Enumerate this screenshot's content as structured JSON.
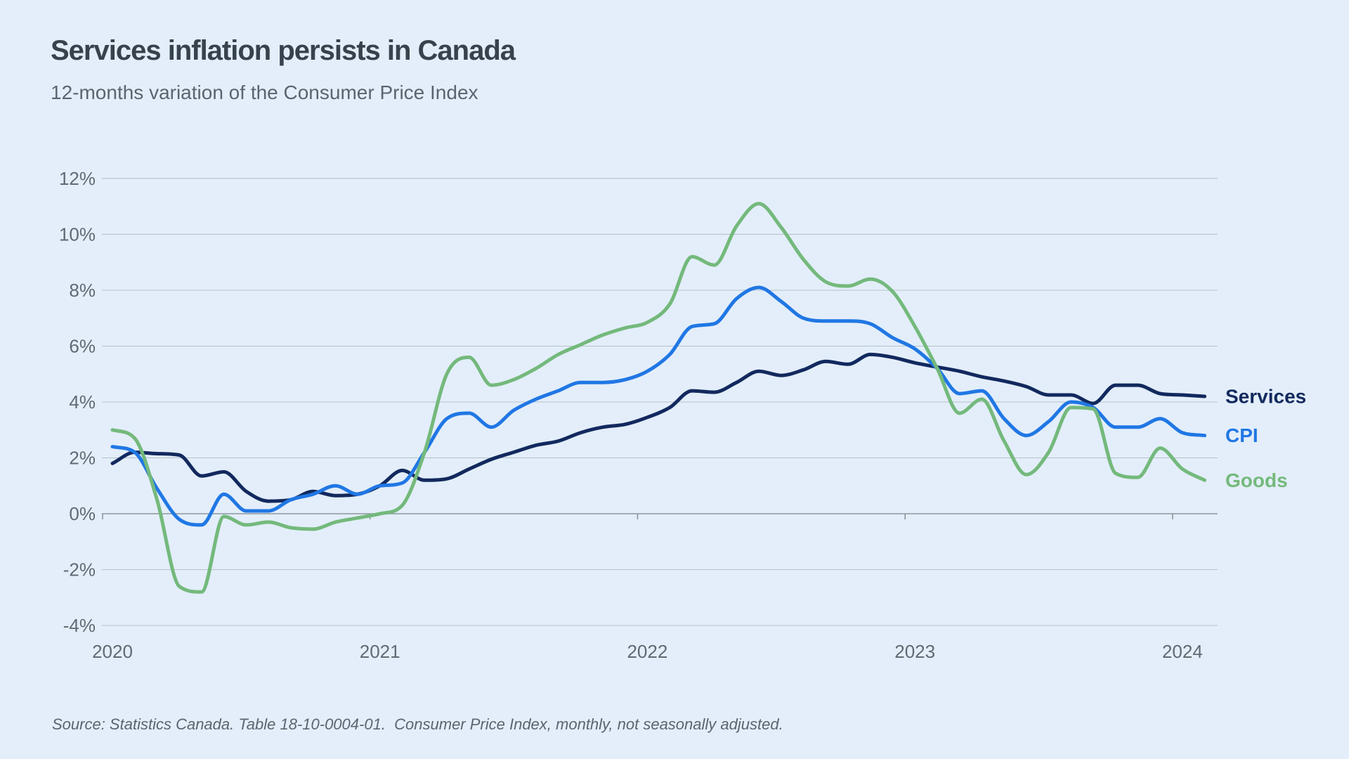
{
  "header": {
    "title": "Services inflation persists in Canada",
    "subtitle": "12-months variation of the Consumer Price Index"
  },
  "source": {
    "text": "Source: Statistics Canada. Table 18-10-0004-01.  Consumer Price Index, monthly, not seasonally adjusted."
  },
  "colors": {
    "background": "#e3eefa",
    "title_text": "#37424d",
    "muted_text": "#5b656f",
    "axis_text": "#606a73",
    "gridline": "#b9c1c9",
    "zero_line": "#8c959e",
    "services": "#12295e",
    "cpi": "#2077e4",
    "goods": "#74b97c"
  },
  "chart_data": {
    "type": "line",
    "title": "Services inflation persists in Canada",
    "subtitle": "12-months variation of the Consumer Price Index",
    "unit": "%",
    "ylim": [
      -4,
      12
    ],
    "grid": "horizontal",
    "legend_position": "right of line ends",
    "y_axis": {
      "tick_values": [
        12,
        10,
        8,
        6,
        4,
        2,
        0,
        -2,
        -4
      ],
      "tick_labels": [
        "12%",
        "10%",
        "8%",
        "6%",
        "4%",
        "2%",
        "0%",
        "-2%",
        "-4%"
      ]
    },
    "x_axis": {
      "tick_labels": [
        "2020",
        "2021",
        "2022",
        "2023",
        "2024"
      ],
      "tick_month_index": [
        0,
        12,
        24,
        36,
        48
      ]
    },
    "x": [
      "2020-01",
      "2020-02",
      "2020-03",
      "2020-04",
      "2020-05",
      "2020-06",
      "2020-07",
      "2020-08",
      "2020-09",
      "2020-10",
      "2020-11",
      "2020-12",
      "2021-01",
      "2021-02",
      "2021-03",
      "2021-04",
      "2021-05",
      "2021-06",
      "2021-07",
      "2021-08",
      "2021-09",
      "2021-10",
      "2021-11",
      "2021-12",
      "2022-01",
      "2022-02",
      "2022-03",
      "2022-04",
      "2022-05",
      "2022-06",
      "2022-07",
      "2022-08",
      "2022-09",
      "2022-10",
      "2022-11",
      "2022-12",
      "2023-01",
      "2023-02",
      "2023-03",
      "2023-04",
      "2023-05",
      "2023-06",
      "2023-07",
      "2023-08",
      "2023-09",
      "2023-10",
      "2023-11",
      "2023-12",
      "2024-01",
      "2024-02"
    ],
    "series": [
      {
        "name": "Services",
        "color": "#12295e",
        "values": [
          1.8,
          2.2,
          2.15,
          2.1,
          1.35,
          1.5,
          0.8,
          0.45,
          0.5,
          0.8,
          0.65,
          0.7,
          1.0,
          1.55,
          1.2,
          1.25,
          1.6,
          1.95,
          2.2,
          2.45,
          2.6,
          2.9,
          3.1,
          3.2,
          3.45,
          3.8,
          4.4,
          4.35,
          4.7,
          5.1,
          4.95,
          5.15,
          5.45,
          5.35,
          5.7,
          5.6,
          5.4,
          5.25,
          5.1,
          4.9,
          4.75,
          4.55,
          4.25,
          4.25,
          3.95,
          4.6,
          4.6,
          4.3,
          4.25,
          4.2
        ]
      },
      {
        "name": "CPI",
        "color": "#2077e4",
        "values": [
          2.4,
          2.2,
          0.9,
          -0.2,
          -0.4,
          0.7,
          0.1,
          0.1,
          0.5,
          0.7,
          1.0,
          0.7,
          1.0,
          1.1,
          2.2,
          3.4,
          3.6,
          3.1,
          3.7,
          4.1,
          4.4,
          4.7,
          4.7,
          4.8,
          5.1,
          5.7,
          6.7,
          6.8,
          7.7,
          8.1,
          7.6,
          7.0,
          6.9,
          6.9,
          6.8,
          6.3,
          5.9,
          5.2,
          4.3,
          4.4,
          3.4,
          2.8,
          3.3,
          4.0,
          3.8,
          3.1,
          3.1,
          3.4,
          2.9,
          2.8
        ]
      },
      {
        "name": "Goods",
        "color": "#74b97c",
        "values": [
          3.0,
          2.7,
          0.5,
          -2.6,
          -2.8,
          -0.1,
          -0.4,
          -0.3,
          -0.5,
          -0.55,
          -0.3,
          -0.15,
          0.0,
          0.3,
          2.2,
          5.0,
          5.6,
          4.6,
          4.8,
          5.2,
          5.7,
          6.05,
          6.4,
          6.65,
          6.85,
          7.5,
          9.2,
          8.9,
          10.3,
          11.1,
          10.25,
          9.1,
          8.3,
          8.15,
          8.4,
          7.95,
          6.7,
          5.2,
          3.6,
          4.1,
          2.6,
          1.4,
          2.2,
          3.8,
          3.75,
          1.45,
          1.3,
          2.35,
          1.6,
          1.2
        ]
      }
    ]
  }
}
